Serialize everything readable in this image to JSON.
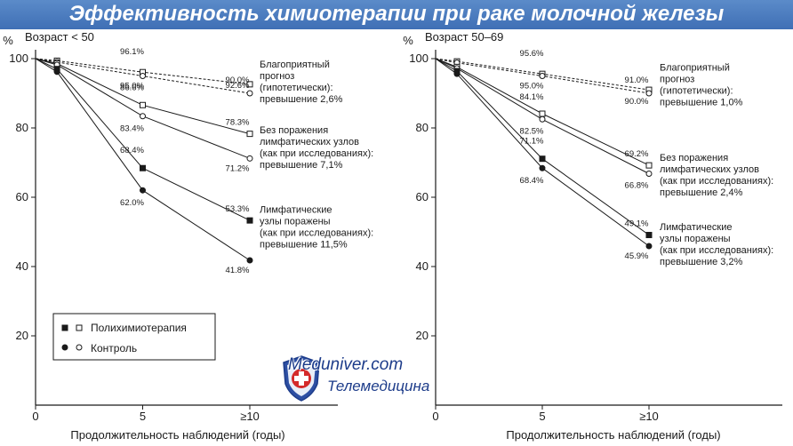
{
  "title": "Эффективность химиотерапии при раке молочной железы",
  "colors": {
    "title_bar": "#4a7bbf",
    "title_text": "#ffffff",
    "ink": "#1a1a1a"
  },
  "legend": {
    "items": [
      {
        "label": "Полихимиотерапия",
        "markers": "filled-square, open-square"
      },
      {
        "label": "Контроль",
        "markers": "filled-circle, open-circle"
      }
    ]
  },
  "watermark": {
    "site": "Meduniver.com",
    "subtitle": "Телемедицина",
    "logo": "shield-cross-logo"
  },
  "chart_data": [
    {
      "type": "line",
      "panel_label": "Возраст < 50",
      "ylabel": "%",
      "xlabel": "Продолжительность наблюдений (годы)",
      "x_ticks": [
        "0",
        "5",
        "≥10"
      ],
      "y_ticks": [
        "20",
        "40",
        "60",
        "80",
        "100"
      ],
      "xlim": [
        0,
        15
      ],
      "ylim": [
        0,
        100
      ],
      "grid": false,
      "x": [
        0,
        1,
        5,
        10
      ],
      "series": [
        {
          "group": "Благоприятный прогноз (гипотетически)",
          "arm": "Полихимиотерапия",
          "marker": "open-square",
          "dashed": true,
          "values": [
            100,
            99.4,
            96.1,
            92.6
          ],
          "labels": [
            "",
            "",
            "96.1%",
            "92.6%"
          ]
        },
        {
          "group": "Благоприятный прогноз (гипотетически)",
          "arm": "Контроль",
          "marker": "open-circle",
          "dashed": true,
          "values": [
            100,
            99.0,
            95.0,
            90.0
          ],
          "labels": [
            "",
            "",
            "95.0%",
            "90.0%"
          ]
        },
        {
          "group": "Без поражения лимфатических узлов",
          "arm": "Полихимиотерапия",
          "marker": "open-square",
          "dashed": false,
          "values": [
            100,
            98.6,
            86.6,
            78.3
          ],
          "labels": [
            "",
            "",
            "86.6%",
            "78.3%"
          ]
        },
        {
          "group": "Без поражения лимфатических узлов",
          "arm": "Контроль",
          "marker": "open-circle",
          "dashed": false,
          "values": [
            100,
            98.2,
            83.4,
            71.2
          ],
          "labels": [
            "",
            "",
            "83.4%",
            "71.2%"
          ]
        },
        {
          "group": "Лимфатические узлы поражены",
          "arm": "Полихимиотерапия",
          "marker": "filled-square",
          "dashed": false,
          "values": [
            100,
            97.0,
            68.4,
            53.3
          ],
          "labels": [
            "",
            "",
            "68.4%",
            "53.3%"
          ]
        },
        {
          "group": "Лимфатические узлы поражены",
          "arm": "Контроль",
          "marker": "filled-circle",
          "dashed": false,
          "values": [
            100,
            96.2,
            62.0,
            41.8
          ],
          "labels": [
            "",
            "",
            "62.0%",
            "41.8%"
          ]
        }
      ],
      "annotations": [
        {
          "lines": [
            "Благоприятный",
            "прогноз",
            "(гипотетически):",
            "превышение 2,6%"
          ],
          "y": 97.5
        },
        {
          "lines": [
            "Без поражения",
            "лимфатических узлов",
            "(как при исследованиях):",
            "превышение 7,1%"
          ],
          "y": 78.5
        },
        {
          "lines": [
            "Лимфатические",
            "узлы поражены",
            "(как при исследованиях):",
            "превышение 11,5%"
          ],
          "y": 55.5
        }
      ]
    },
    {
      "type": "line",
      "panel_label": "Возраст 50–69",
      "ylabel": "%",
      "xlabel": "Продолжительность наблюдений (годы)",
      "x_ticks": [
        "0",
        "5",
        "≥10"
      ],
      "y_ticks": [
        "20",
        "40",
        "60",
        "80",
        "100"
      ],
      "xlim": [
        0,
        15
      ],
      "ylim": [
        0,
        100
      ],
      "grid": false,
      "x": [
        0,
        1,
        5,
        10
      ],
      "series": [
        {
          "group": "Благоприятный прогноз (гипотетически)",
          "arm": "Полихимиотерапия",
          "marker": "open-square",
          "dashed": true,
          "values": [
            100,
            99.2,
            95.6,
            91.0
          ],
          "labels": [
            "",
            "",
            "95.6%",
            "91.0%"
          ]
        },
        {
          "group": "Благоприятный прогноз (гипотетически)",
          "arm": "Контроль",
          "marker": "open-circle",
          "dashed": true,
          "values": [
            100,
            98.8,
            95.0,
            90.0
          ],
          "labels": [
            "",
            "",
            "95.0%",
            "90.0%"
          ]
        },
        {
          "group": "Без поражения лимфатических узлов",
          "arm": "Полихимиотерапия",
          "marker": "open-square",
          "dashed": false,
          "values": [
            100,
            97.6,
            84.1,
            69.2
          ],
          "labels": [
            "",
            "",
            "84.1%",
            "69.2%"
          ]
        },
        {
          "group": "Без поражения лимфатических узлов",
          "arm": "Контроль",
          "marker": "open-circle",
          "dashed": false,
          "values": [
            100,
            97.2,
            82.5,
            66.8
          ],
          "labels": [
            "",
            "",
            "82.5%",
            "66.8%"
          ]
        },
        {
          "group": "Лимфатические узлы поражены",
          "arm": "Полихимиотерапия",
          "marker": "filled-square",
          "dashed": false,
          "values": [
            100,
            96.4,
            71.1,
            49.1
          ],
          "labels": [
            "",
            "",
            "71.1%",
            "49.1%"
          ]
        },
        {
          "group": "Лимфатические узлы поражены",
          "arm": "Контроль",
          "marker": "filled-circle",
          "dashed": false,
          "values": [
            100,
            95.6,
            68.4,
            45.9
          ],
          "labels": [
            "",
            "",
            "68.4%",
            "45.9%"
          ]
        }
      ],
      "annotations": [
        {
          "lines": [
            "Благоприятный",
            "прогноз",
            "(гипотетически):",
            "превышение 1,0%"
          ],
          "y": 96.5
        },
        {
          "lines": [
            "Без поражения",
            "лимфатических узлов",
            "(как при исследованиях):",
            "превышение 2,4%"
          ],
          "y": 70.5
        },
        {
          "lines": [
            "Лимфатические",
            "узлы поражены",
            "(как при исследованиях):",
            "превышение 3,2%"
          ],
          "y": 50.5
        }
      ]
    }
  ]
}
